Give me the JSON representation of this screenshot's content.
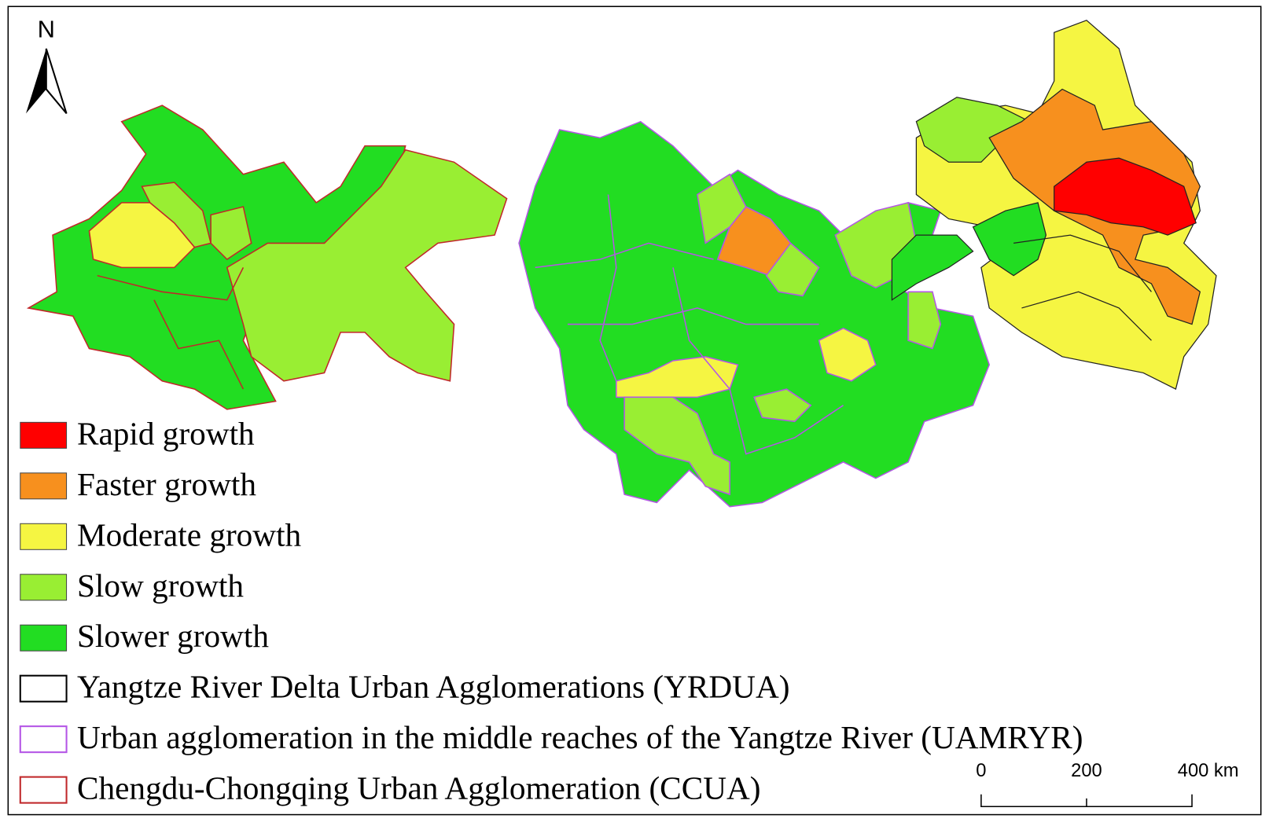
{
  "north_arrow": {
    "label": "N"
  },
  "legend": {
    "items": [
      {
        "label": "Rapid growth",
        "color": "#ff0000",
        "style": "fill"
      },
      {
        "label": "Faster growth",
        "color": "#f7901e",
        "style": "fill"
      },
      {
        "label": "Moderate growth",
        "color": "#f5f542",
        "style": "fill"
      },
      {
        "label": "Slow growth",
        "color": "#99ee33",
        "style": "fill"
      },
      {
        "label": "Slower growth",
        "color": "#22dd22",
        "style": "fill"
      },
      {
        "label": "Yangtze River Delta Urban Agglomerations (YRDUA)",
        "color": "#000000",
        "style": "outline"
      },
      {
        "label": "Urban agglomeration in the middle reaches of the Yangtze River (UAMRYR)",
        "color": "#b455e6",
        "style": "outline"
      },
      {
        "label": "Chengdu-Chongqing Urban Agglomeration (CCUA)",
        "color": "#c0282a",
        "style": "outline"
      }
    ]
  },
  "scale_bar": {
    "labels": [
      "0",
      "200",
      "400 km"
    ]
  }
}
